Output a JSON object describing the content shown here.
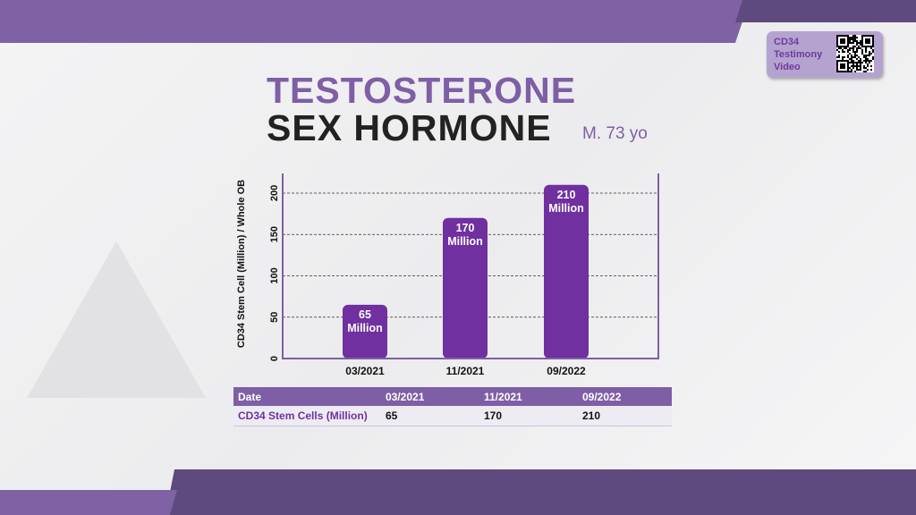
{
  "title_line1": "TESTOSTERONE",
  "title_line2": "SEX HORMONE",
  "subtitle": "M. 73 yo",
  "qr_badge": {
    "text": "CD34\nTestimony\nVideo",
    "icon": "qr-code-icon"
  },
  "colors": {
    "accent": "#7e5fa5",
    "bar": "#7030a0",
    "dark_band": "#5e4a7e"
  },
  "chart_data": {
    "type": "bar",
    "categories": [
      "03/2021",
      "11/2021",
      "09/2022"
    ],
    "values": [
      65,
      170,
      210
    ],
    "data_labels": [
      "65\nMillion",
      "170\nMillion",
      "210\nMillion"
    ],
    "ylabel": "CD34 Stem Cell (Million) / Whole OB",
    "xlabel": "",
    "ylim": [
      0,
      200
    ],
    "yticks": [
      0,
      50,
      100,
      150,
      200
    ],
    "grid": true
  },
  "table": {
    "headers": [
      "Date",
      "03/2021",
      "11/2021",
      "09/2022"
    ],
    "rows": [
      [
        "CD34 Stem Cells (Million)",
        "65",
        "170",
        "210"
      ]
    ]
  }
}
